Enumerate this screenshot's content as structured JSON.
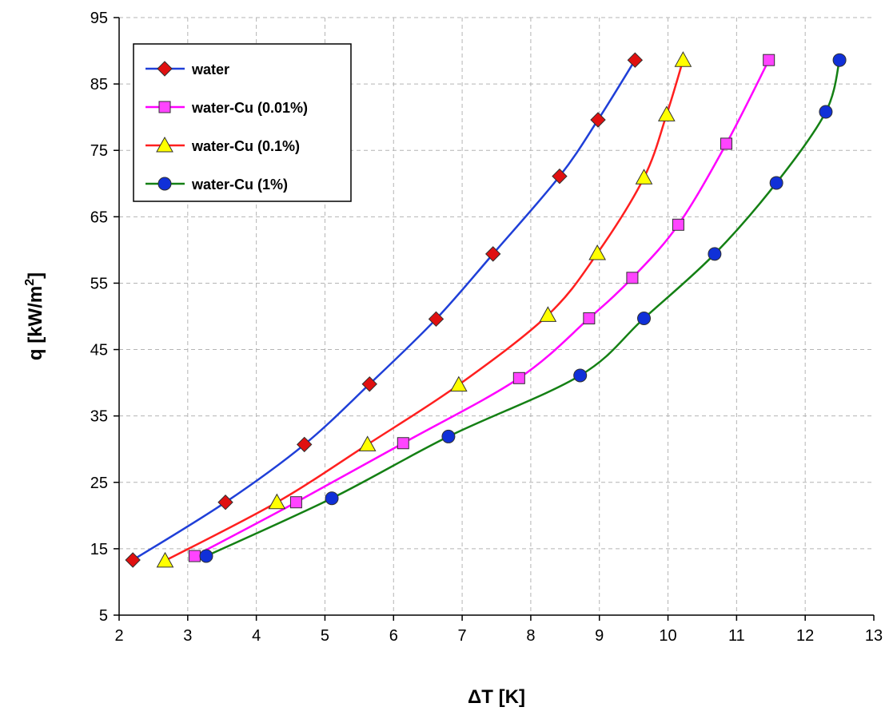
{
  "chart_data": {
    "type": "line",
    "xlabel": "ΔT [K]",
    "ylabel": "q [kW/m",
    "ylabel_sup": "2",
    "ylabel_end": "]",
    "xlim": [
      2,
      13
    ],
    "ylim": [
      5,
      95
    ],
    "xticks": [
      2,
      3,
      4,
      5,
      6,
      7,
      8,
      9,
      10,
      11,
      12,
      13
    ],
    "yticks": [
      5,
      15,
      25,
      35,
      45,
      55,
      65,
      75,
      85,
      95
    ],
    "grid": true,
    "legend_position": "top-left",
    "series": [
      {
        "name": "water",
        "color": "#1f3fd8",
        "marker": "diamond",
        "marker_color": "#e01010",
        "x": [
          2.2,
          3.55,
          4.7,
          5.65,
          6.62,
          7.45,
          8.42,
          8.98,
          9.52
        ],
        "y": [
          13.3,
          22.0,
          30.7,
          39.8,
          49.6,
          59.4,
          71.1,
          79.6,
          88.6
        ]
      },
      {
        "name": "water-Cu (0.01%)",
        "color": "#ff00ff",
        "marker": "square",
        "marker_color": "#ff44ff",
        "x": [
          3.1,
          4.58,
          6.14,
          7.83,
          8.85,
          9.48,
          10.15,
          10.85,
          11.47
        ],
        "y": [
          13.9,
          22.0,
          30.9,
          40.7,
          49.7,
          55.8,
          63.8,
          76.0,
          88.6
        ]
      },
      {
        "name": "water-Cu (0.1%)",
        "color": "#ff1f1f",
        "marker": "triangle",
        "marker_color": "#ffff00",
        "x": [
          2.67,
          4.3,
          5.62,
          6.95,
          8.25,
          8.97,
          9.65,
          9.98,
          10.22
        ],
        "y": [
          13.2,
          22.0,
          30.7,
          39.7,
          50.2,
          59.5,
          70.9,
          80.4,
          88.6
        ]
      },
      {
        "name": "water-Cu (1%)",
        "color": "#148014",
        "marker": "circle",
        "marker_color": "#1030d8",
        "x": [
          3.27,
          5.1,
          6.8,
          8.72,
          9.65,
          10.68,
          11.58,
          12.3,
          12.5
        ],
        "y": [
          13.9,
          22.6,
          31.9,
          41.1,
          49.7,
          59.4,
          70.1,
          80.8,
          88.6
        ]
      }
    ]
  }
}
